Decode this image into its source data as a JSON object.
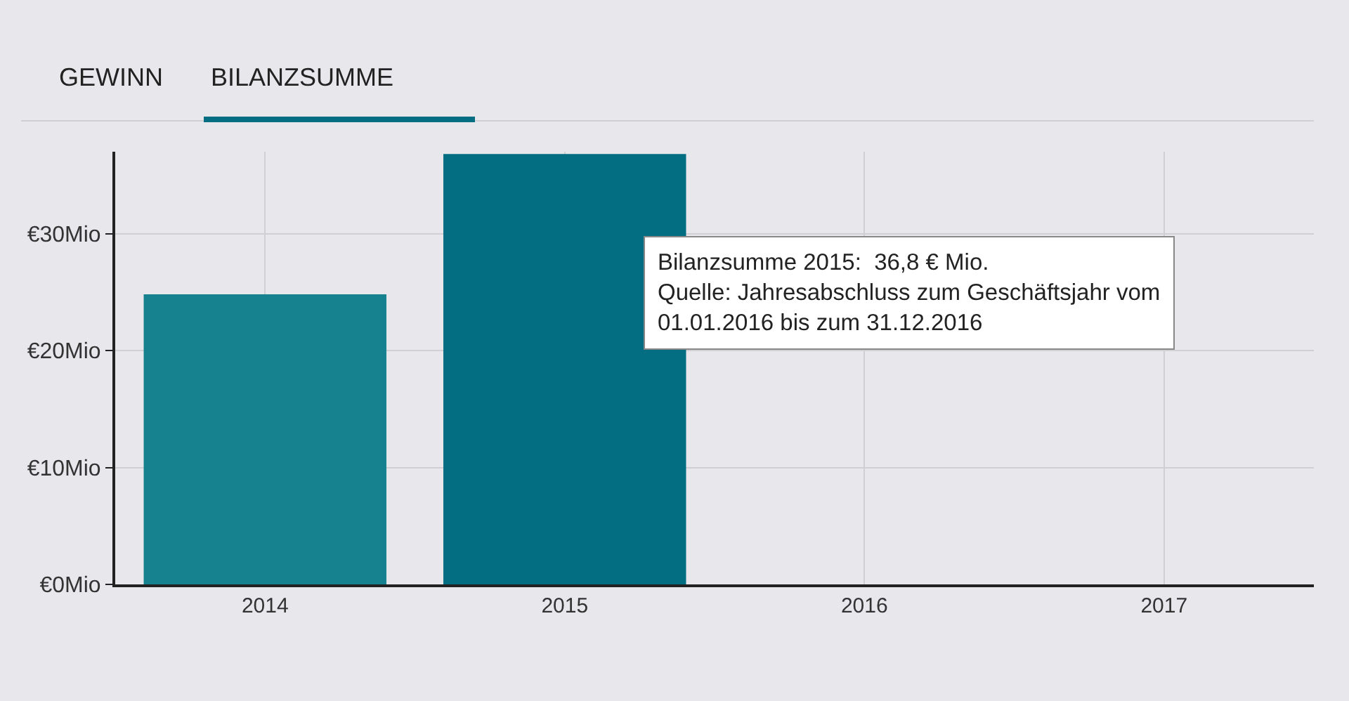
{
  "chart_data": {
    "type": "bar",
    "categories": [
      "2014",
      "2015",
      "2016",
      "2017"
    ],
    "values": [
      24.8,
      36.8,
      null,
      null
    ],
    "colors": [
      "#17828f",
      "#036e82",
      "#17828f",
      "#17828f"
    ],
    "ylim": [
      0,
      37
    ],
    "yticks": [
      {
        "value": 0,
        "label": "€0Mio"
      },
      {
        "value": 10,
        "label": "€10Mio"
      },
      {
        "value": 20,
        "label": "€20Mio"
      },
      {
        "value": 30,
        "label": "€30Mio"
      }
    ],
    "grid": true,
    "annotations": [
      "GEWINN",
      "BILANZSUMME",
      "Bilanzsumme 2015:  36,8 € Mio.\nQuelle: Jahresabschluss zum Geschäftsjahr vom\n01.01.2016 bis zum 31.12.2016"
    ]
  }
}
